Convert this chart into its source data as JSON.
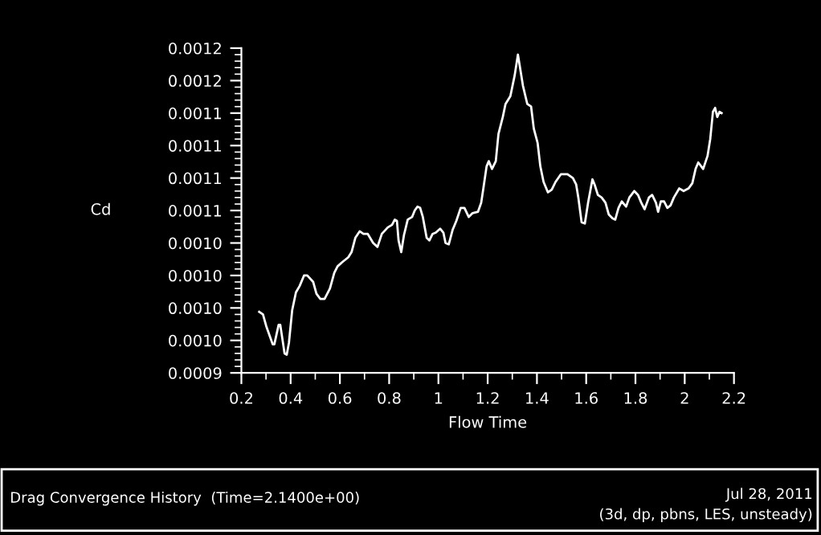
{
  "chart_data": {
    "type": "line",
    "title": "Drag Convergence History  (Time=2.1400e+00)",
    "xlabel": "Flow Time",
    "ylabel": "Cd",
    "annotations": [
      "Jul 28, 2011",
      "(3d, dp, pbns, LES, unsteady)"
    ],
    "xlim": [
      0.2,
      2.2
    ],
    "xticks": [
      0.2,
      0.4,
      0.6,
      0.8,
      1,
      1.2,
      1.4,
      1.6,
      1.8,
      2,
      2.2
    ],
    "ylim": [
      0.00093,
      0.00118
    ],
    "yticks": [
      {
        "value": 0.00093,
        "label": "0.0009"
      },
      {
        "value": 0.000955,
        "label": "0.0010"
      },
      {
        "value": 0.00098,
        "label": "0.0010"
      },
      {
        "value": 0.001005,
        "label": "0.0010"
      },
      {
        "value": 0.00103,
        "label": "0.0010"
      },
      {
        "value": 0.001055,
        "label": "0.0011"
      },
      {
        "value": 0.00108,
        "label": "0.0011"
      },
      {
        "value": 0.001105,
        "label": "0.0011"
      },
      {
        "value": 0.00113,
        "label": "0.0011"
      },
      {
        "value": 0.001155,
        "label": "0.0012"
      },
      {
        "value": 0.00118,
        "label": "0.0012"
      }
    ],
    "grid": false,
    "legend": false,
    "marker": "none",
    "line_style": "solid",
    "series": [
      {
        "color": "#ffffff",
        "x": [
          0.2724,
          0.2877,
          0.3009,
          0.3272,
          0.3338,
          0.3513,
          0.3579,
          0.3754,
          0.3842,
          0.393,
          0.4061,
          0.4215,
          0.4368,
          0.4544,
          0.4675,
          0.4917,
          0.5048,
          0.5202,
          0.5377,
          0.5596,
          0.5772,
          0.5904,
          0.6079,
          0.6342,
          0.6474,
          0.6627,
          0.6803,
          0.6956,
          0.7132,
          0.7351,
          0.7526,
          0.7702,
          0.7943,
          0.8118,
          0.8228,
          0.8316,
          0.8382,
          0.8491,
          0.8601,
          0.8754,
          0.893,
          0.9039,
          0.9149,
          0.9259,
          0.9368,
          0.9522,
          0.9632,
          0.9763,
          0.9895,
          1.007,
          1.0202,
          1.0289,
          1.0421,
          1.0575,
          1.0728,
          1.0904,
          1.1057,
          1.1232,
          1.1386,
          1.1605,
          1.1737,
          1.1825,
          1.1956,
          1.2044,
          1.2175,
          1.2329,
          1.2439,
          1.2614,
          1.2724,
          1.2921,
          1.3096,
          1.3228,
          1.3433,
          1.3609,
          1.3763,
          1.3873,
          1.4028,
          1.4138,
          1.427,
          1.4447,
          1.4601,
          1.4755,
          1.4976,
          1.524,
          1.546,
          1.5593,
          1.5681,
          1.5813,
          1.5945,
          1.6077,
          1.6254,
          1.6342,
          1.6474,
          1.6628,
          1.6783,
          1.6915,
          1.7069,
          1.7179,
          1.7311,
          1.7444,
          1.762,
          1.7752,
          1.7951,
          1.8105,
          1.8237,
          1.837,
          1.8546,
          1.8678,
          1.8832,
          1.892,
          1.9031,
          1.9163,
          1.9295,
          1.9427,
          1.956,
          1.978,
          1.9956,
          2.0155,
          2.0309,
          2.0441,
          2.0551,
          2.0749,
          2.0926,
          2.1036,
          2.1146,
          2.1234,
          2.1322,
          2.141,
          2.1498
        ],
        "values": [
          0.000977,
          0.000975,
          0.000966,
          0.000952,
          0.000952,
          0.000967,
          0.000967,
          0.000945,
          0.000944,
          0.000953,
          0.000978,
          0.000992,
          0.000997,
          0.001005,
          0.001005,
          0.001,
          0.000991,
          0.000987,
          0.000987,
          0.000995,
          0.001007,
          0.001012,
          0.001015,
          0.001019,
          0.001023,
          0.001034,
          0.001039,
          0.001037,
          0.001037,
          0.00103,
          0.001027,
          0.001037,
          0.001042,
          0.001044,
          0.001048,
          0.001047,
          0.001032,
          0.001023,
          0.001036,
          0.001048,
          0.00105,
          0.001055,
          0.001058,
          0.001057,
          0.00105,
          0.001034,
          0.001032,
          0.001037,
          0.001038,
          0.001041,
          0.001038,
          0.00103,
          0.001029,
          0.00104,
          0.001047,
          0.001057,
          0.001057,
          0.00105,
          0.001053,
          0.001054,
          0.001061,
          0.001072,
          0.001089,
          0.001093,
          0.001087,
          0.001093,
          0.001114,
          0.001127,
          0.001137,
          0.001143,
          0.001159,
          0.001175,
          0.001151,
          0.001137,
          0.001135,
          0.001118,
          0.001107,
          0.001089,
          0.001077,
          0.001069,
          0.001071,
          0.001077,
          0.001083,
          0.001083,
          0.00108,
          0.001075,
          0.001065,
          0.001046,
          0.001045,
          0.001061,
          0.001079,
          0.001075,
          0.001067,
          0.001065,
          0.001061,
          0.001052,
          0.001049,
          0.001048,
          0.001057,
          0.001062,
          0.001058,
          0.001065,
          0.00107,
          0.001067,
          0.001061,
          0.001056,
          0.001065,
          0.001067,
          0.001061,
          0.001054,
          0.001062,
          0.001062,
          0.001057,
          0.001059,
          0.001065,
          0.001072,
          0.00107,
          0.001072,
          0.001076,
          0.001087,
          0.001092,
          0.001087,
          0.001097,
          0.00111,
          0.001131,
          0.001134,
          0.001127,
          0.001131,
          0.00113
        ]
      }
    ]
  }
}
